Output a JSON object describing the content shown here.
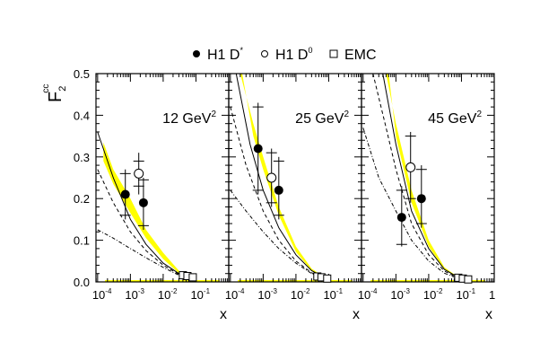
{
  "chart_data": {
    "type": "scatter",
    "ylabel": "F2cc",
    "ylabel_main": "F",
    "ylabel_sub": "2",
    "ylabel_sup": "cc",
    "xlabel": "x",
    "xscale": "log",
    "xlim": [
      8.91e-05,
      1
    ],
    "ylim": [
      0,
      0.5
    ],
    "yticks": [
      "0.0",
      "0.1",
      "0.2",
      "0.3",
      "0.4",
      "0.5"
    ],
    "xticks": [
      {
        "base": "10",
        "exp": "-4",
        "v": 0.0001
      },
      {
        "base": "10",
        "exp": "-3",
        "v": 0.001
      },
      {
        "base": "10",
        "exp": "-2",
        "v": 0.01
      },
      {
        "base": "10",
        "exp": "-1",
        "v": 0.1
      },
      {
        "base": "1",
        "exp": "",
        "v": 1
      }
    ],
    "legend": [
      {
        "marker": "filled-circle",
        "label": "H1 D",
        "sup": "*"
      },
      {
        "marker": "open-circle",
        "label": "H1 D",
        "sup": "0"
      },
      {
        "marker": "open-square",
        "label": "EMC",
        "sup": ""
      }
    ],
    "colors": {
      "band": "#ffff00",
      "line": "#000000"
    },
    "panels": [
      {
        "label": "12 GeV",
        "sup": "2",
        "dstar": [
          {
            "x": 0.0007,
            "y": 0.21,
            "stat": [
              0.16,
              0.26
            ],
            "tot": [
              0.15,
              0.27
            ]
          },
          {
            "x": 0.0025,
            "y": 0.19,
            "stat": [
              0.135,
              0.245
            ],
            "tot": [
              0.125,
              0.25
            ]
          }
        ],
        "d0": [
          {
            "x": 0.0018,
            "y": 0.26,
            "stat": [
              0.23,
              0.29
            ],
            "tot": [
              0.21,
              0.31
            ]
          }
        ],
        "emc": [
          {
            "x": 0.04,
            "y": 0.016
          },
          {
            "x": 0.055,
            "y": 0.014
          },
          {
            "x": 0.08,
            "y": 0.011
          }
        ],
        "band_upper": [
          [
            0.00015,
            0.335
          ],
          [
            0.0003,
            0.27
          ],
          [
            0.001,
            0.2
          ],
          [
            0.003,
            0.125
          ],
          [
            0.01,
            0.07
          ],
          [
            0.03,
            0.027
          ],
          [
            0.1,
            0.005
          ]
        ],
        "band_lower": [
          [
            0.00015,
            0.29
          ],
          [
            0.0003,
            0.235
          ],
          [
            0.001,
            0.165
          ],
          [
            0.003,
            0.105
          ],
          [
            0.01,
            0.055
          ],
          [
            0.03,
            0.021
          ],
          [
            0.1,
            0.004
          ]
        ],
        "solid": [
          [
            0.0001,
            0.36
          ],
          [
            0.0003,
            0.25
          ],
          [
            0.001,
            0.15
          ],
          [
            0.003,
            0.09
          ],
          [
            0.01,
            0.045
          ],
          [
            0.03,
            0.02
          ],
          [
            0.1,
            0.005
          ]
        ],
        "dashed": [
          [
            0.0001,
            0.27
          ],
          [
            0.0003,
            0.19
          ],
          [
            0.001,
            0.12
          ],
          [
            0.003,
            0.075
          ],
          [
            0.01,
            0.04
          ],
          [
            0.03,
            0.018
          ],
          [
            0.1,
            0.005
          ]
        ],
        "dashdot": [
          [
            0.0001,
            0.125
          ],
          [
            0.0003,
            0.105
          ],
          [
            0.001,
            0.08
          ],
          [
            0.003,
            0.058
          ],
          [
            0.01,
            0.035
          ],
          [
            0.03,
            0.016
          ],
          [
            0.1,
            0.005
          ]
        ]
      },
      {
        "label": "25 GeV",
        "sup": "2",
        "dstar": [
          {
            "x": 0.0007,
            "y": 0.32,
            "stat": [
              0.22,
              0.42
            ],
            "tot": [
              0.21,
              0.43
            ]
          },
          {
            "x": 0.003,
            "y": 0.22,
            "stat": [
              0.16,
              0.29
            ],
            "tot": [
              0.15,
              0.3
            ]
          }
        ],
        "d0": [
          {
            "x": 0.0018,
            "y": 0.25,
            "stat": [
              0.19,
              0.31
            ],
            "tot": [
              0.18,
              0.32
            ]
          }
        ],
        "emc": [
          {
            "x": 0.045,
            "y": 0.013
          },
          {
            "x": 0.06,
            "y": 0.011
          },
          {
            "x": 0.09,
            "y": 0.008
          }
        ],
        "band_upper": [
          [
            0.0002,
            0.5
          ],
          [
            0.0005,
            0.38
          ],
          [
            0.001,
            0.3
          ],
          [
            0.003,
            0.18
          ],
          [
            0.01,
            0.085
          ],
          [
            0.03,
            0.032
          ],
          [
            0.1,
            0.005
          ]
        ],
        "band_lower": [
          [
            0.00023,
            0.5
          ],
          [
            0.0005,
            0.35
          ],
          [
            0.001,
            0.27
          ],
          [
            0.003,
            0.16
          ],
          [
            0.01,
            0.072
          ],
          [
            0.03,
            0.027
          ],
          [
            0.1,
            0.004
          ]
        ],
        "solid": [
          [
            0.00015,
            0.5
          ],
          [
            0.0004,
            0.33
          ],
          [
            0.001,
            0.22
          ],
          [
            0.003,
            0.13
          ],
          [
            0.01,
            0.065
          ],
          [
            0.03,
            0.027
          ],
          [
            0.1,
            0.005
          ]
        ],
        "dashed": [
          [
            0.0001,
            0.42
          ],
          [
            0.0003,
            0.28
          ],
          [
            0.001,
            0.17
          ],
          [
            0.003,
            0.1
          ],
          [
            0.01,
            0.05
          ],
          [
            0.03,
            0.022
          ],
          [
            0.1,
            0.005
          ]
        ],
        "dashdot": [
          [
            0.0001,
            0.22
          ],
          [
            0.0003,
            0.17
          ],
          [
            0.001,
            0.12
          ],
          [
            0.003,
            0.08
          ],
          [
            0.01,
            0.045
          ],
          [
            0.03,
            0.02
          ],
          [
            0.1,
            0.005
          ]
        ]
      },
      {
        "label": "45 GeV",
        "sup": "2",
        "dstar": [
          {
            "x": 0.0015,
            "y": 0.155,
            "stat": [
              0.09,
              0.22
            ],
            "tot": [
              0.085,
              0.23
            ]
          },
          {
            "x": 0.006,
            "y": 0.2,
            "stat": [
              0.14,
              0.27
            ],
            "tot": [
              0.13,
              0.28
            ]
          }
        ],
        "d0": [
          {
            "x": 0.0028,
            "y": 0.275,
            "stat": [
              0.2,
              0.35
            ],
            "tot": [
              0.19,
              0.36
            ]
          }
        ],
        "emc": [
          {
            "x": 0.08,
            "y": 0.01
          },
          {
            "x": 0.11,
            "y": 0.008
          },
          {
            "x": 0.16,
            "y": 0.006
          }
        ],
        "band_upper": [
          [
            0.0005,
            0.5
          ],
          [
            0.001,
            0.38
          ],
          [
            0.003,
            0.22
          ],
          [
            0.01,
            0.1
          ],
          [
            0.03,
            0.035
          ],
          [
            0.1,
            0.006
          ]
        ],
        "band_lower": [
          [
            0.0006,
            0.5
          ],
          [
            0.001,
            0.35
          ],
          [
            0.003,
            0.19
          ],
          [
            0.01,
            0.085
          ],
          [
            0.03,
            0.03
          ],
          [
            0.1,
            0.005
          ]
        ],
        "solid": [
          [
            0.0004,
            0.5
          ],
          [
            0.001,
            0.33
          ],
          [
            0.003,
            0.17
          ],
          [
            0.01,
            0.08
          ],
          [
            0.03,
            0.03
          ],
          [
            0.1,
            0.006
          ]
        ],
        "dashed": [
          [
            0.0002,
            0.5
          ],
          [
            0.0005,
            0.37
          ],
          [
            0.001,
            0.27
          ],
          [
            0.003,
            0.14
          ],
          [
            0.01,
            0.065
          ],
          [
            0.03,
            0.026
          ],
          [
            0.1,
            0.005
          ]
        ],
        "dashdot": [
          [
            0.0001,
            0.37
          ],
          [
            0.0003,
            0.25
          ],
          [
            0.001,
            0.17
          ],
          [
            0.003,
            0.1
          ],
          [
            0.01,
            0.05
          ],
          [
            0.03,
            0.021
          ],
          [
            0.1,
            0.005
          ]
        ]
      }
    ]
  }
}
